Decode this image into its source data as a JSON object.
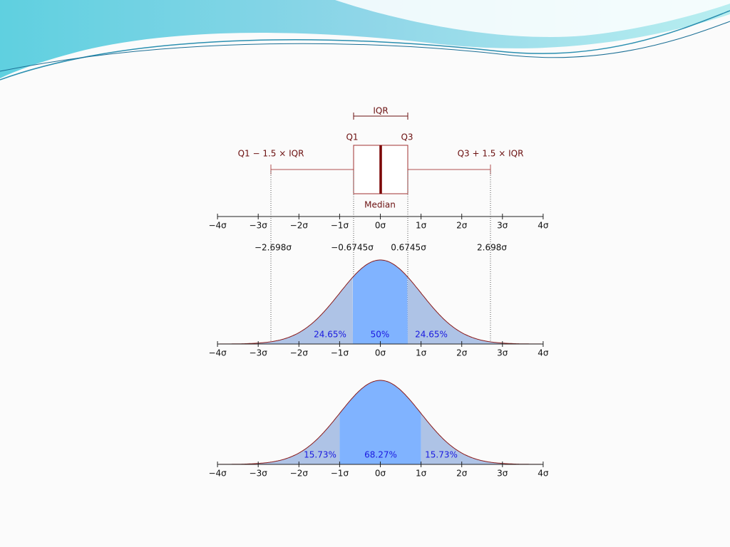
{
  "boxplot": {
    "iqr_label": "IQR",
    "q1_label": "Q1",
    "q3_label": "Q3",
    "lower_whisker_label": "Q1 − 1.5 × IQR",
    "upper_whisker_label": "Q3 + 1.5 × IQR",
    "median_label": "Median"
  },
  "axis_ticks": [
    "−4σ",
    "−3σ",
    "−2σ",
    "−1σ",
    "0σ",
    "1σ",
    "2σ",
    "3σ",
    "4σ"
  ],
  "markers": [
    "−2.698σ",
    "−0.6745σ",
    "0.6745σ",
    "2.698σ"
  ],
  "iqr_distribution": {
    "regions": [
      "24.65%",
      "50%",
      "24.65%"
    ]
  },
  "sigma_distribution": {
    "regions": [
      "15.73%",
      "68.27%",
      "15.73%"
    ]
  }
}
